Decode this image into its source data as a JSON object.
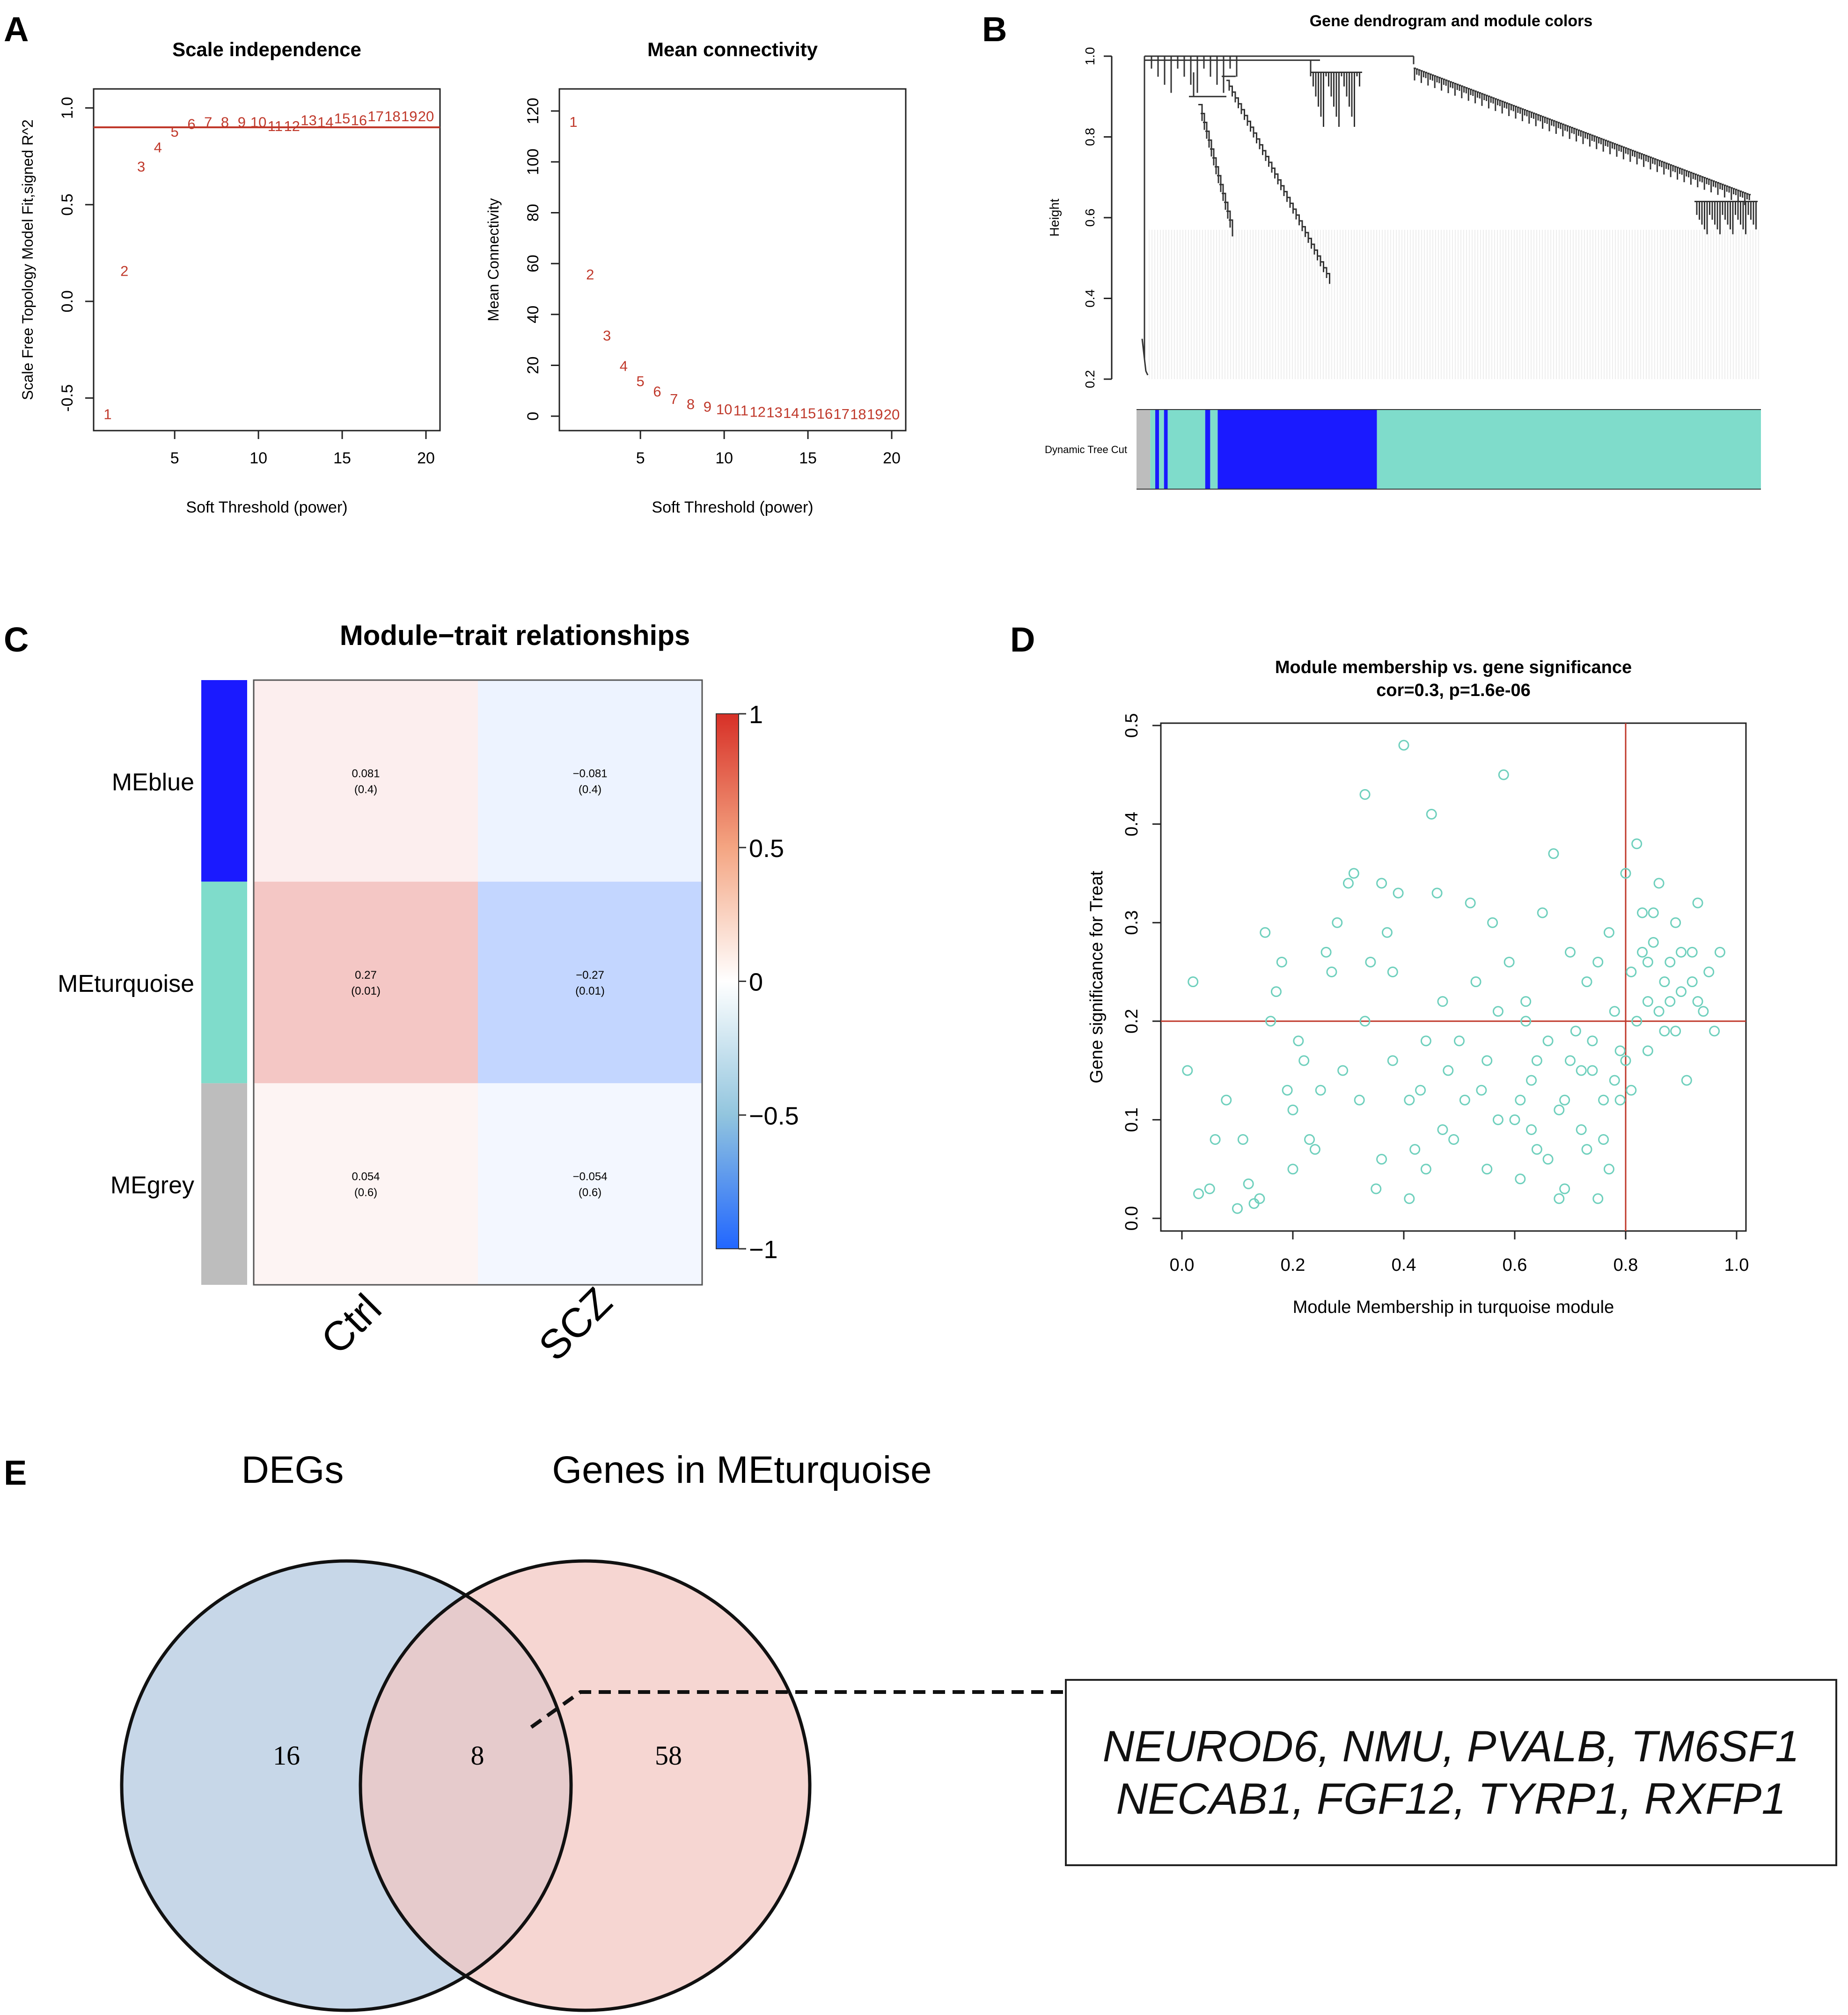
{
  "colors": {
    "red": "#c0392b",
    "blue": "#1a1aff",
    "turquoise": "#7fdccb",
    "grey": "#bdbdbd",
    "venn_blue": "#c7d7e8",
    "venn_pink": "#f3c6c0"
  },
  "panels": {
    "A": "A",
    "B": "B",
    "C": "C",
    "D": "D",
    "E": "E"
  },
  "chart_data": [
    {
      "id": "scale_independence",
      "type": "scatter",
      "title": "Scale independence",
      "xlabel": "Soft Threshold (power)",
      "ylabel": "Scale Free Topology Model Fit,signed R^2",
      "xlim": [
        1,
        20
      ],
      "ylim": [
        -0.62,
        1.05
      ],
      "xticks": [
        5,
        10,
        15,
        20
      ],
      "yticks": [
        -0.5,
        0.0,
        0.5,
        1.0
      ],
      "ytick_labels": [
        "-0.5",
        "0.0",
        "0.5",
        "1.0"
      ],
      "hline": 0.9,
      "points": [
        {
          "x": 1,
          "y": -0.58,
          "label": "1"
        },
        {
          "x": 2,
          "y": 0.16,
          "label": "2"
        },
        {
          "x": 3,
          "y": 0.7,
          "label": "3"
        },
        {
          "x": 4,
          "y": 0.8,
          "label": "4"
        },
        {
          "x": 5,
          "y": 0.88,
          "label": "5"
        },
        {
          "x": 6,
          "y": 0.92,
          "label": "6"
        },
        {
          "x": 7,
          "y": 0.93,
          "label": "7"
        },
        {
          "x": 8,
          "y": 0.93,
          "label": "8"
        },
        {
          "x": 9,
          "y": 0.93,
          "label": "9"
        },
        {
          "x": 10,
          "y": 0.93,
          "label": "10"
        },
        {
          "x": 11,
          "y": 0.91,
          "label": "11"
        },
        {
          "x": 12,
          "y": 0.91,
          "label": "12"
        },
        {
          "x": 13,
          "y": 0.94,
          "label": "13"
        },
        {
          "x": 14,
          "y": 0.93,
          "label": "14"
        },
        {
          "x": 15,
          "y": 0.95,
          "label": "15"
        },
        {
          "x": 16,
          "y": 0.94,
          "label": "16"
        },
        {
          "x": 17,
          "y": 0.96,
          "label": "17"
        },
        {
          "x": 18,
          "y": 0.96,
          "label": "18"
        },
        {
          "x": 19,
          "y": 0.96,
          "label": "19"
        },
        {
          "x": 20,
          "y": 0.96,
          "label": "20"
        }
      ]
    },
    {
      "id": "mean_connectivity",
      "type": "scatter",
      "title": "Mean connectivity",
      "xlabel": "Soft Threshold (power)",
      "ylabel": "Mean Connectivity",
      "xlim": [
        1,
        20
      ],
      "ylim": [
        -2,
        125
      ],
      "xticks": [
        5,
        10,
        15,
        20
      ],
      "yticks": [
        0,
        20,
        40,
        60,
        80,
        100,
        120
      ],
      "ytick_labels": [
        "0",
        "20",
        "40",
        "60",
        "80",
        "100",
        "120"
      ],
      "points": [
        {
          "x": 1,
          "y": 116,
          "label": "1"
        },
        {
          "x": 2,
          "y": 56,
          "label": "2"
        },
        {
          "x": 3,
          "y": 32,
          "label": "3"
        },
        {
          "x": 4,
          "y": 20,
          "label": "4"
        },
        {
          "x": 5,
          "y": 14,
          "label": "5"
        },
        {
          "x": 6,
          "y": 10,
          "label": "6"
        },
        {
          "x": 7,
          "y": 7,
          "label": "7"
        },
        {
          "x": 8,
          "y": 5,
          "label": "8"
        },
        {
          "x": 9,
          "y": 4,
          "label": "9"
        },
        {
          "x": 10,
          "y": 3,
          "label": "10"
        },
        {
          "x": 11,
          "y": 2.5,
          "label": "11"
        },
        {
          "x": 12,
          "y": 2,
          "label": "12"
        },
        {
          "x": 13,
          "y": 1.8,
          "label": "13"
        },
        {
          "x": 14,
          "y": 1.5,
          "label": "14"
        },
        {
          "x": 15,
          "y": 1.4,
          "label": "15"
        },
        {
          "x": 16,
          "y": 1.2,
          "label": "16"
        },
        {
          "x": 17,
          "y": 1.1,
          "label": "17"
        },
        {
          "x": 18,
          "y": 1.0,
          "label": "18"
        },
        {
          "x": 19,
          "y": 1.0,
          "label": "19"
        },
        {
          "x": 20,
          "y": 0.9,
          "label": "20"
        }
      ]
    },
    {
      "id": "dendrogram",
      "type": "dendrogram",
      "title": "Gene dendrogram and module colors",
      "ylabel": "Height",
      "ylim": [
        0.2,
        1.0
      ],
      "yticks": [
        0.2,
        0.4,
        0.6,
        0.8,
        1.0
      ],
      "ytick_labels": [
        "0.2",
        "0.4",
        "0.6",
        "0.8",
        "1.0"
      ],
      "color_bar_label": "Dynamic Tree Cut",
      "color_bar": [
        {
          "color": "grey",
          "from": 0.0,
          "to": 0.022
        },
        {
          "color": "turquoise",
          "from": 0.022,
          "to": 0.03
        },
        {
          "color": "blue",
          "from": 0.03,
          "to": 0.036
        },
        {
          "color": "turquoise",
          "from": 0.036,
          "to": 0.044
        },
        {
          "color": "blue",
          "from": 0.044,
          "to": 0.05
        },
        {
          "color": "turquoise",
          "from": 0.05,
          "to": 0.11
        },
        {
          "color": "blue",
          "from": 0.11,
          "to": 0.118
        },
        {
          "color": "turquoise",
          "from": 0.118,
          "to": 0.13
        },
        {
          "color": "blue",
          "from": 0.13,
          "to": 0.385
        },
        {
          "color": "turquoise",
          "from": 0.385,
          "to": 1.0
        }
      ]
    },
    {
      "id": "module_trait",
      "type": "heatmap",
      "title": "Module−trait relationships",
      "columns": [
        "Ctrl",
        "SCZ"
      ],
      "rows": [
        "MEblue",
        "MEturquoise",
        "MEgrey"
      ],
      "row_colors": [
        "blue",
        "turquoise",
        "grey"
      ],
      "values": [
        [
          0.081,
          -0.081
        ],
        [
          0.27,
          -0.27
        ],
        [
          0.054,
          -0.054
        ]
      ],
      "cell_labels": [
        [
          [
            "0.081",
            "(0.4)"
          ],
          [
            "−0.081",
            "(0.4)"
          ]
        ],
        [
          [
            "0.27",
            "(0.01)"
          ],
          [
            "−0.27",
            "(0.01)"
          ]
        ],
        [
          [
            "0.054",
            "(0.6)"
          ],
          [
            "−0.054",
            "(0.6)"
          ]
        ]
      ],
      "colorbar_range": [
        -1,
        1
      ],
      "colorbar_ticks": [
        1,
        0.5,
        0,
        -0.5,
        -1
      ],
      "colorbar_tick_labels": [
        "1",
        "0.5",
        "0",
        "−0.5",
        "−1"
      ]
    },
    {
      "id": "mm_vs_gs",
      "type": "scatter",
      "title": "Module membership vs. gene significance",
      "subtitle": "cor=0.3, p=1.6e-06",
      "xlabel": "Module Membership in turquoise module",
      "ylabel": "Gene significance for  Treat",
      "xlim": [
        -0.02,
        1.0
      ],
      "ylim": [
        -0.01,
        0.5
      ],
      "xticks": [
        0.0,
        0.2,
        0.4,
        0.6,
        0.8,
        1.0
      ],
      "xtick_labels": [
        "0.0",
        "0.2",
        "0.4",
        "0.6",
        "0.8",
        "1.0"
      ],
      "yticks": [
        0.0,
        0.1,
        0.2,
        0.3,
        0.4,
        0.5
      ],
      "ytick_labels": [
        "0.0",
        "0.1",
        "0.2",
        "0.3",
        "0.4",
        "0.5"
      ],
      "vline": 0.8,
      "hline": 0.2,
      "points": [
        [
          0.02,
          0.24
        ],
        [
          0.01,
          0.15
        ],
        [
          0.03,
          0.025
        ],
        [
          0.06,
          0.08
        ],
        [
          0.08,
          0.12
        ],
        [
          0.1,
          0.01
        ],
        [
          0.12,
          0.035
        ],
        [
          0.13,
          0.015
        ],
        [
          0.15,
          0.29
        ],
        [
          0.16,
          0.2
        ],
        [
          0.17,
          0.23
        ],
        [
          0.18,
          0.26
        ],
        [
          0.19,
          0.13
        ],
        [
          0.2,
          0.05
        ],
        [
          0.21,
          0.18
        ],
        [
          0.22,
          0.16
        ],
        [
          0.23,
          0.08
        ],
        [
          0.24,
          0.07
        ],
        [
          0.26,
          0.27
        ],
        [
          0.27,
          0.25
        ],
        [
          0.28,
          0.3
        ],
        [
          0.3,
          0.34
        ],
        [
          0.31,
          0.35
        ],
        [
          0.32,
          0.12
        ],
        [
          0.33,
          0.43
        ],
        [
          0.34,
          0.26
        ],
        [
          0.35,
          0.03
        ],
        [
          0.36,
          0.34
        ],
        [
          0.37,
          0.29
        ],
        [
          0.38,
          0.16
        ],
        [
          0.39,
          0.33
        ],
        [
          0.4,
          0.48
        ],
        [
          0.41,
          0.12
        ],
        [
          0.42,
          0.07
        ],
        [
          0.43,
          0.13
        ],
        [
          0.44,
          0.05
        ],
        [
          0.45,
          0.41
        ],
        [
          0.46,
          0.33
        ],
        [
          0.47,
          0.22
        ],
        [
          0.48,
          0.15
        ],
        [
          0.49,
          0.08
        ],
        [
          0.5,
          0.18
        ],
        [
          0.52,
          0.32
        ],
        [
          0.53,
          0.24
        ],
        [
          0.54,
          0.13
        ],
        [
          0.55,
          0.05
        ],
        [
          0.56,
          0.3
        ],
        [
          0.57,
          0.21
        ],
        [
          0.58,
          0.45
        ],
        [
          0.59,
          0.26
        ],
        [
          0.6,
          0.1
        ],
        [
          0.61,
          0.04
        ],
        [
          0.62,
          0.22
        ],
        [
          0.63,
          0.14
        ],
        [
          0.64,
          0.07
        ],
        [
          0.65,
          0.31
        ],
        [
          0.66,
          0.18
        ],
        [
          0.67,
          0.37
        ],
        [
          0.68,
          0.11
        ],
        [
          0.69,
          0.03
        ],
        [
          0.7,
          0.27
        ],
        [
          0.71,
          0.19
        ],
        [
          0.72,
          0.09
        ],
        [
          0.73,
          0.24
        ],
        [
          0.74,
          0.15
        ],
        [
          0.75,
          0.02
        ],
        [
          0.76,
          0.12
        ],
        [
          0.77,
          0.29
        ],
        [
          0.78,
          0.21
        ],
        [
          0.79,
          0.17
        ],
        [
          0.8,
          0.35
        ],
        [
          0.81,
          0.25
        ],
        [
          0.82,
          0.38
        ],
        [
          0.83,
          0.31
        ],
        [
          0.84,
          0.22
        ],
        [
          0.85,
          0.28
        ],
        [
          0.86,
          0.34
        ],
        [
          0.87,
          0.19
        ],
        [
          0.88,
          0.26
        ],
        [
          0.89,
          0.3
        ],
        [
          0.9,
          0.23
        ],
        [
          0.91,
          0.14
        ],
        [
          0.92,
          0.27
        ],
        [
          0.93,
          0.32
        ],
        [
          0.94,
          0.21
        ],
        [
          0.95,
          0.25
        ],
        [
          0.96,
          0.19
        ],
        [
          0.97,
          0.27
        ],
        [
          0.61,
          0.12
        ],
        [
          0.64,
          0.16
        ],
        [
          0.66,
          0.06
        ],
        [
          0.69,
          0.12
        ],
        [
          0.72,
          0.15
        ],
        [
          0.74,
          0.18
        ],
        [
          0.76,
          0.08
        ],
        [
          0.78,
          0.14
        ],
        [
          0.8,
          0.16
        ],
        [
          0.82,
          0.2
        ],
        [
          0.84,
          0.17
        ],
        [
          0.86,
          0.21
        ],
        [
          0.87,
          0.24
        ],
        [
          0.88,
          0.22
        ],
        [
          0.9,
          0.27
        ],
        [
          0.92,
          0.24
        ],
        [
          0.83,
          0.27
        ],
        [
          0.85,
          0.31
        ],
        [
          0.79,
          0.12
        ],
        [
          0.81,
          0.13
        ],
        [
          0.77,
          0.05
        ],
        [
          0.73,
          0.07
        ],
        [
          0.68,
          0.02
        ],
        [
          0.63,
          0.09
        ],
        [
          0.57,
          0.1
        ],
        [
          0.55,
          0.16
        ],
        [
          0.51,
          0.12
        ],
        [
          0.47,
          0.09
        ],
        [
          0.44,
          0.18
        ],
        [
          0.41,
          0.02
        ],
        [
          0.38,
          0.25
        ],
        [
          0.36,
          0.06
        ],
        [
          0.33,
          0.2
        ],
        [
          0.29,
          0.15
        ],
        [
          0.25,
          0.13
        ],
        [
          0.2,
          0.11
        ],
        [
          0.14,
          0.02
        ],
        [
          0.11,
          0.08
        ],
        [
          0.05,
          0.03
        ],
        [
          0.62,
          0.2
        ],
        [
          0.7,
          0.16
        ],
        [
          0.75,
          0.26
        ],
        [
          0.84,
          0.26
        ],
        [
          0.89,
          0.19
        ],
        [
          0.93,
          0.22
        ]
      ]
    },
    {
      "id": "venn",
      "type": "venn",
      "sets": [
        {
          "name": "DEGs",
          "only": 16
        },
        {
          "name": "Genes in MEturquoise",
          "only": 58
        }
      ],
      "intersection": 8,
      "labels": {
        "left": "16",
        "middle": "8",
        "right": "58"
      },
      "intersection_genes": [
        "NEUROD6, NMU, PVALB, TM6SF1",
        "NECAB1, FGF12, TYRP1, RXFP1"
      ]
    }
  ]
}
